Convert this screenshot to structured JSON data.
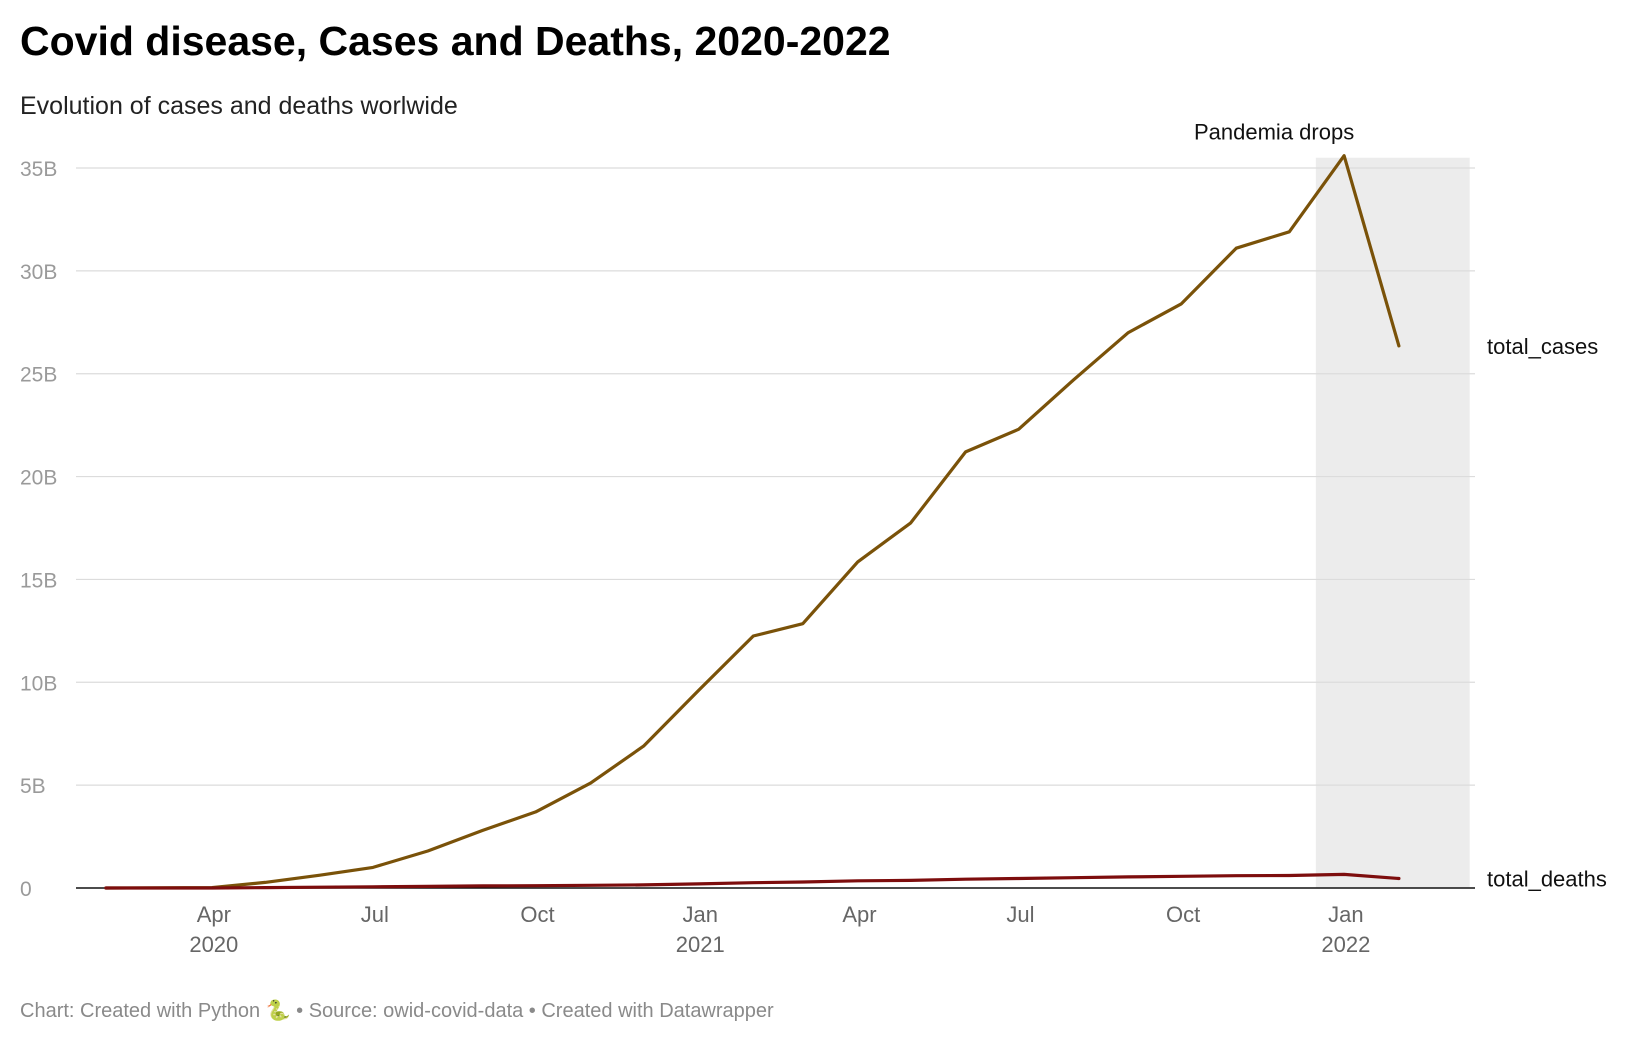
{
  "title": "Covid disease, Cases and Deaths, 2020-2022",
  "subtitle": "Evolution of cases and deaths worlwide",
  "footer": "Chart: Created with Python 🐍 • Source: owid-covid-data • Created with Datawrapper",
  "chart_data": {
    "type": "line",
    "title": "Covid disease, Cases and Deaths, 2020-2022",
    "subtitle": "Evolution of cases and deaths worlwide",
    "x_type": "date",
    "xlim": [
      "2020-01-22",
      "2022-03-15"
    ],
    "ylim": [
      0,
      35
    ],
    "y_unit_suffix": "B",
    "y_ticks": [
      0,
      5,
      10,
      15,
      20,
      25,
      30,
      35
    ],
    "y_tick_labels": [
      "0",
      "5B",
      "10B",
      "15B",
      "20B",
      "25B",
      "30B",
      "35B"
    ],
    "x_ticks": [
      {
        "date": "2020-04-01",
        "label": "Apr",
        "year": "2020"
      },
      {
        "date": "2020-07-01",
        "label": "Jul",
        "year": ""
      },
      {
        "date": "2020-10-01",
        "label": "Oct",
        "year": ""
      },
      {
        "date": "2021-01-01",
        "label": "Jan",
        "year": "2021"
      },
      {
        "date": "2021-04-01",
        "label": "Apr",
        "year": ""
      },
      {
        "date": "2021-07-01",
        "label": "Jul",
        "year": ""
      },
      {
        "date": "2021-10-01",
        "label": "Oct",
        "year": ""
      },
      {
        "date": "2022-01-01",
        "label": "Jan",
        "year": "2022"
      }
    ],
    "grid": true,
    "highlight_range": {
      "start": "2021-12-15",
      "end": "2022-03-12",
      "color": "#ececec"
    },
    "annotation": {
      "text": "Pandemia drops",
      "date": "2021-12-31",
      "value": 35.5
    },
    "series": [
      {
        "name": "total_cases",
        "color": "#7a5209",
        "points": [
          [
            "2020-01-31",
            0.0
          ],
          [
            "2020-03-31",
            0.02
          ],
          [
            "2020-04-30",
            0.27
          ],
          [
            "2020-05-31",
            0.62
          ],
          [
            "2020-06-30",
            1.0
          ],
          [
            "2020-07-31",
            1.8
          ],
          [
            "2020-08-31",
            2.8
          ],
          [
            "2020-09-30",
            3.7
          ],
          [
            "2020-10-31",
            5.1
          ],
          [
            "2020-11-30",
            6.9
          ],
          [
            "2020-12-31",
            9.6
          ],
          [
            "2021-01-31",
            12.25
          ],
          [
            "2021-02-28",
            12.85
          ],
          [
            "2021-03-31",
            15.85
          ],
          [
            "2021-04-30",
            17.75
          ],
          [
            "2021-05-31",
            21.2
          ],
          [
            "2021-06-30",
            22.3
          ],
          [
            "2021-07-31",
            24.7
          ],
          [
            "2021-08-31",
            27.0
          ],
          [
            "2021-09-30",
            28.4
          ],
          [
            "2021-10-31",
            31.1
          ],
          [
            "2021-11-30",
            31.9
          ],
          [
            "2021-12-31",
            35.6
          ],
          [
            "2022-01-31",
            26.35
          ]
        ]
      },
      {
        "name": "total_deaths",
        "color": "#7d0d0d",
        "points": [
          [
            "2020-01-31",
            0.0
          ],
          [
            "2020-03-31",
            0.0
          ],
          [
            "2020-04-30",
            0.02
          ],
          [
            "2020-05-31",
            0.04
          ],
          [
            "2020-06-30",
            0.06
          ],
          [
            "2020-07-31",
            0.08
          ],
          [
            "2020-08-31",
            0.1
          ],
          [
            "2020-09-30",
            0.11
          ],
          [
            "2020-10-31",
            0.13
          ],
          [
            "2020-11-30",
            0.15
          ],
          [
            "2020-12-31",
            0.2
          ],
          [
            "2021-01-31",
            0.26
          ],
          [
            "2021-02-28",
            0.29
          ],
          [
            "2021-03-31",
            0.35
          ],
          [
            "2021-04-30",
            0.37
          ],
          [
            "2021-05-31",
            0.43
          ],
          [
            "2021-06-30",
            0.46
          ],
          [
            "2021-07-31",
            0.5
          ],
          [
            "2021-08-31",
            0.54
          ],
          [
            "2021-09-30",
            0.57
          ],
          [
            "2021-10-31",
            0.6
          ],
          [
            "2021-11-30",
            0.61
          ],
          [
            "2021-12-31",
            0.66
          ],
          [
            "2022-01-31",
            0.46
          ]
        ]
      }
    ]
  }
}
